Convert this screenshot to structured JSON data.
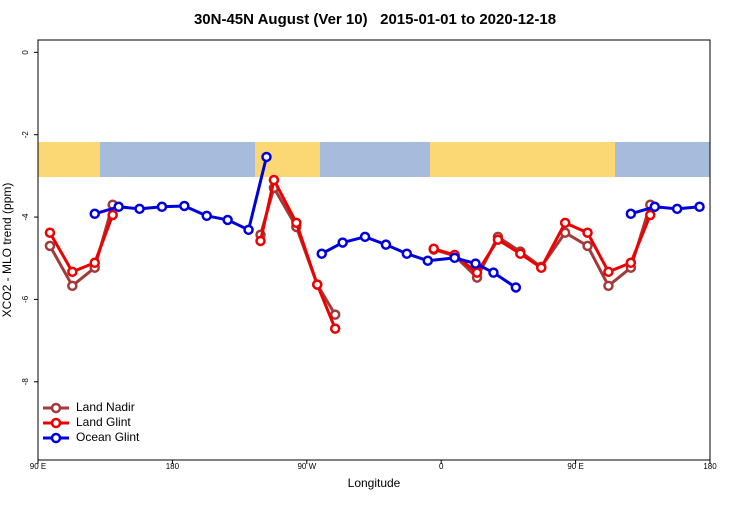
{
  "chart_data": {
    "type": "line",
    "title": "30N-45N August (Ver 10)   2015-01-01 to 2020-12-18",
    "x_label": "Longitude",
    "y_label": "XCO2 - MLO trend (ppm)",
    "xlim": [
      90,
      540
    ],
    "ylim": [
      -9.9,
      0.3
    ],
    "xticks": [
      {
        "value": 90,
        "label": "90 E"
      },
      {
        "value": 180,
        "label": "180"
      },
      {
        "value": 270,
        "label": "90 W"
      },
      {
        "value": 360,
        "label": "0"
      },
      {
        "value": 450,
        "label": "90 E"
      },
      {
        "value": 540,
        "label": "180"
      }
    ],
    "yticks": [
      0,
      -2,
      -4,
      -6,
      -8
    ],
    "legend": "bottom-left",
    "series": [
      {
        "name": "Land Nadir",
        "color": "#a33a3a",
        "x": [
          98,
          113,
          128,
          140,
          null,
          239,
          248,
          263,
          277,
          289,
          null,
          355,
          369,
          384,
          398,
          413,
          427,
          443,
          458,
          472,
          487,
          500
        ],
        "values": [
          -4.7,
          -5.67,
          -5.23,
          -3.7,
          null,
          -4.43,
          -3.29,
          -4.24,
          -5.64,
          -6.37,
          null,
          -4.79,
          -4.94,
          -5.47,
          -4.48,
          -4.84,
          -5.21,
          -4.38,
          -4.7,
          -5.67,
          -5.23,
          -3.7
        ]
      },
      {
        "name": "Land Glint",
        "color": "#ee0000",
        "x": [
          98,
          113,
          128,
          140,
          null,
          239,
          248,
          263,
          277,
          289,
          null,
          355,
          369,
          384,
          398,
          413,
          427,
          443,
          458,
          472,
          487,
          500
        ],
        "values": [
          -4.38,
          -5.33,
          -5.11,
          -3.95,
          null,
          -4.58,
          -3.1,
          -4.14,
          -5.64,
          -6.71,
          null,
          -4.77,
          -4.92,
          -5.35,
          -4.55,
          -4.89,
          -5.23,
          -4.14,
          -4.38,
          -5.33,
          -5.11,
          -3.95
        ]
      },
      {
        "name": "Ocean Glint",
        "color": "#0000dd",
        "x": [
          128,
          144,
          158,
          173,
          188,
          203,
          217,
          231,
          243,
          null,
          280,
          294,
          309,
          323,
          337,
          351,
          369,
          383,
          395,
          410,
          null,
          487,
          503,
          518,
          533
        ],
        "values": [
          -3.92,
          -3.75,
          -3.8,
          -3.75,
          -3.73,
          -3.97,
          -4.07,
          -4.31,
          -2.54,
          null,
          -4.89,
          -4.62,
          -4.48,
          -4.67,
          -4.89,
          -5.06,
          -4.99,
          -5.13,
          -5.35,
          -5.71,
          null,
          -3.92,
          -3.75,
          -3.8,
          -3.75
        ]
      }
    ]
  }
}
